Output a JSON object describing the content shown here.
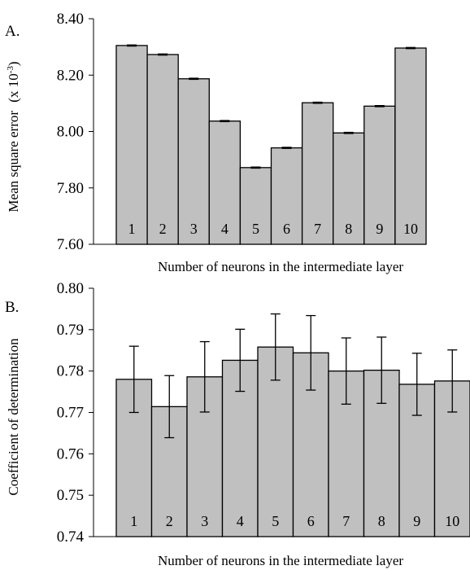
{
  "chart_data": [
    {
      "panel": "A.",
      "type": "bar",
      "categories": [
        "1",
        "2",
        "3",
        "4",
        "5",
        "6",
        "7",
        "8",
        "9",
        "10"
      ],
      "values": [
        8.305,
        8.273,
        8.187,
        8.037,
        7.872,
        7.942,
        8.102,
        7.995,
        8.09,
        8.296
      ],
      "errors": [
        0.002,
        0.002,
        0.002,
        0.002,
        0.002,
        0.002,
        0.002,
        0.002,
        0.002,
        0.002
      ],
      "xlabel": "Number of neurons in the intermediate layer",
      "ylabel": "Mean square error",
      "ylabel_unit": "(x 10",
      "ylabel_exp": "-3",
      "ylabel_close": ")",
      "ylim": [
        7.6,
        8.4
      ],
      "yticks": [
        "7.60",
        "7.80",
        "8.00",
        "8.20",
        "8.40"
      ],
      "ytick_values": [
        7.6,
        7.8,
        8.0,
        8.2,
        8.4
      ],
      "grid": false,
      "bar_color": "#c0c0c0"
    },
    {
      "panel": "B.",
      "type": "bar",
      "categories": [
        "1",
        "2",
        "3",
        "4",
        "5",
        "6",
        "7",
        "8",
        "9",
        "10"
      ],
      "values": [
        0.778,
        0.7714,
        0.7786,
        0.7826,
        0.7858,
        0.7844,
        0.78,
        0.7802,
        0.7768,
        0.7776
      ],
      "errors": [
        0.008,
        0.0075,
        0.0085,
        0.0075,
        0.008,
        0.009,
        0.008,
        0.008,
        0.0075,
        0.0075
      ],
      "xlabel": "Number of neurons in the intermediate layer",
      "ylabel": "Coefficient of determination",
      "ylim": [
        0.74,
        0.8
      ],
      "yticks": [
        "0.74",
        "0.75",
        "0.76",
        "0.77",
        "0.78",
        "0.79",
        "0.80"
      ],
      "ytick_values": [
        0.74,
        0.75,
        0.76,
        0.77,
        0.78,
        0.79,
        0.8
      ],
      "grid": false,
      "bar_color": "#c0c0c0"
    }
  ]
}
